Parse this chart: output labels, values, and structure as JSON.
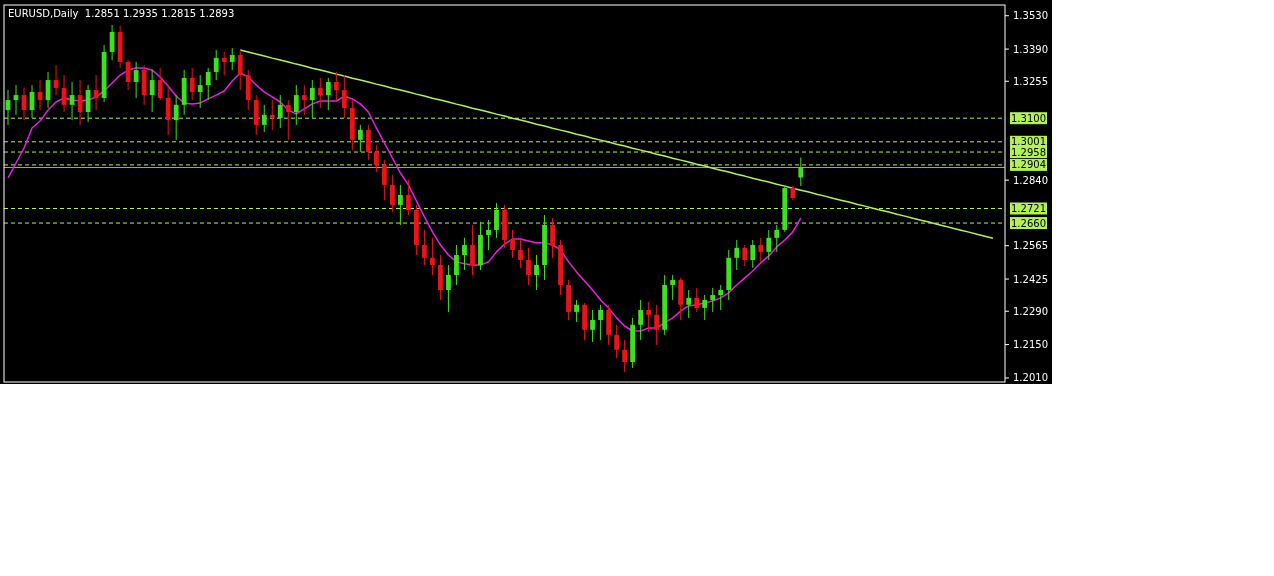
{
  "chart_data": {
    "type": "candlestick",
    "title": "EURUSD,Daily  1.2851 1.2935 1.2815 1.2893",
    "tick_labels": "y",
    "categories": [
      null,
      null,
      null,
      null,
      null,
      null,
      null,
      null,
      null,
      null,
      null,
      null,
      null,
      null,
      null,
      null,
      null,
      null,
      null,
      null,
      null,
      null,
      null,
      null,
      null,
      null,
      null,
      null,
      null,
      null,
      null,
      null,
      null,
      null,
      null,
      null,
      null,
      null,
      null,
      null,
      null,
      null,
      null,
      null,
      null,
      null,
      null,
      null,
      null,
      null,
      null,
      null,
      null,
      null,
      null,
      null,
      null,
      null,
      null,
      null,
      null,
      null,
      null,
      null,
      null,
      null,
      null,
      null,
      null,
      null,
      null,
      null,
      null,
      null,
      null,
      null,
      null,
      null,
      null,
      null,
      null,
      null,
      null,
      null,
      null,
      null,
      null,
      null,
      null,
      null,
      null,
      null,
      null,
      null,
      null,
      null,
      null,
      null,
      null,
      null,
      null,
      null,
      null,
      null,
      null,
      null,
      null,
      null,
      null,
      null,
      null,
      null,
      null,
      null,
      null,
      null,
      null,
      null,
      null,
      null,
      null,
      null,
      null,
      null,
      null
    ],
    "ylim": [
      1.1993,
      1.3575
    ],
    "yticks": [
      {
        "value": 1.353,
        "label": "1.3530"
      },
      {
        "value": 1.339,
        "label": "1.3390"
      },
      {
        "value": 1.3255,
        "label": "1.3255"
      },
      {
        "value": 1.284,
        "label": "1.2840"
      },
      {
        "value": 1.2565,
        "label": "1.2565"
      },
      {
        "value": 1.2425,
        "label": "1.2425"
      },
      {
        "value": 1.229,
        "label": "1.2290"
      },
      {
        "value": 1.215,
        "label": "1.2150"
      },
      {
        "value": 1.201,
        "label": "1.2010"
      }
    ],
    "series": [
      {
        "type": "line",
        "color": "#e81ee8",
        "values": [
          1.2849,
          1.2912,
          1.2975,
          1.3059,
          1.3088,
          1.3134,
          1.3168,
          1.3185,
          1.3176,
          1.3172,
          1.3176,
          1.3189,
          1.3214,
          1.3248,
          1.3281,
          1.3302,
          1.3311,
          1.3311,
          1.3302,
          1.3273,
          1.3235,
          1.3193,
          1.3164,
          1.316,
          1.3164,
          1.3181,
          1.3197,
          1.3214,
          1.3256,
          1.329,
          1.3273,
          1.3239,
          1.321,
          1.3189,
          1.3168,
          1.3134,
          1.3118,
          1.3139,
          1.316,
          1.3172,
          1.3172,
          1.3172,
          1.3193,
          1.3181,
          1.316,
          1.3126,
          1.3059,
          1.2996,
          1.2933,
          1.287,
          1.282,
          1.2753,
          1.2686,
          1.2623,
          1.2568,
          1.2526,
          1.2497,
          1.2489,
          1.2484,
          1.2484,
          1.2497,
          1.2539,
          1.2572,
          1.2593,
          1.2593,
          1.2585,
          1.2577,
          1.2577,
          1.2568,
          1.2547,
          1.2497,
          1.2455,
          1.2417,
          1.2379,
          1.2337,
          1.2304,
          1.2262,
          1.2228,
          1.2207,
          1.2207,
          1.222,
          1.222,
          1.2241,
          1.2262,
          1.2291,
          1.2312,
          1.2317,
          1.2325,
          1.2333,
          1.2346,
          1.2367,
          1.24,
          1.243,
          1.2459,
          1.2493,
          1.2522,
          1.256,
          1.2589,
          1.2623,
          1.2681,
          null,
          null,
          null,
          null,
          null,
          null,
          null,
          null,
          null,
          null,
          null,
          null,
          null,
          null,
          null,
          null,
          null,
          null,
          null,
          null,
          null,
          null,
          null,
          null,
          null
        ]
      },
      {
        "type": "line",
        "color": "#b4f05a",
        "values": [
          null,
          null,
          null,
          null,
          null,
          null,
          null,
          null,
          null,
          null,
          null,
          null,
          null,
          null,
          null,
          null,
          null,
          null,
          null,
          null,
          null,
          null,
          null,
          null,
          null,
          null,
          null,
          null,
          null,
          1.3386,
          1.3378,
          1.3369,
          1.3361,
          1.3352,
          1.3344,
          1.3336,
          1.3327,
          1.3319,
          1.331,
          1.3302,
          1.3294,
          1.3285,
          1.3277,
          1.3268,
          1.326,
          1.3252,
          1.3243,
          1.3235,
          1.3226,
          1.3218,
          1.321,
          1.3201,
          1.3193,
          1.3184,
          1.3176,
          1.3168,
          1.3159,
          1.3151,
          1.3142,
          1.3134,
          1.3126,
          1.3117,
          1.3109,
          1.31,
          1.3092,
          1.3084,
          1.3075,
          1.3067,
          1.3058,
          1.305,
          1.3042,
          1.3033,
          1.3025,
          1.3016,
          1.3008,
          1.3,
          1.2991,
          1.2983,
          1.2974,
          1.2966,
          1.2958,
          1.2949,
          1.2941,
          1.2932,
          1.2924,
          1.2916,
          1.2907,
          1.2899,
          1.289,
          1.2882,
          1.2874,
          1.2865,
          1.2857,
          1.2848,
          1.284,
          1.2832,
          1.2823,
          1.2815,
          1.2806,
          1.2798,
          1.279,
          1.2781,
          1.2773,
          1.2764,
          1.2756,
          1.2748,
          1.2739,
          1.2731,
          1.2722,
          1.2714,
          1.2706,
          1.2697,
          1.2689,
          1.268,
          1.2672,
          1.2664,
          1.2655,
          1.2647,
          1.2638,
          1.263,
          1.2622,
          1.2613,
          1.2605,
          1.2596,
          null
        ]
      },
      {
        "ohlc": [
          [
            1.3134,
            1.3218,
            1.3072,
            1.3176
          ],
          [
            1.3176,
            1.3239,
            1.3114,
            1.3197
          ],
          [
            1.3197,
            1.3227,
            1.3092,
            1.3134
          ],
          [
            1.3134,
            1.3239,
            1.3101,
            1.321
          ],
          [
            1.321,
            1.326,
            1.3134,
            1.3176
          ],
          [
            1.3176,
            1.3294,
            1.3143,
            1.326
          ],
          [
            1.326,
            1.3323,
            1.3197,
            1.3227
          ],
          [
            1.3227,
            1.3281,
            1.3126,
            1.3156
          ],
          [
            1.3156,
            1.3252,
            1.3092,
            1.3197
          ],
          [
            1.3197,
            1.326,
            1.3072,
            1.3126
          ],
          [
            1.3126,
            1.3239,
            1.3084,
            1.3218
          ],
          [
            1.3218,
            1.3281,
            1.3134,
            1.3185
          ],
          [
            1.3185,
            1.3407,
            1.3168,
            1.3378
          ],
          [
            1.3378,
            1.3491,
            1.3344,
            1.3462
          ],
          [
            1.3462,
            1.3487,
            1.3311,
            1.3336
          ],
          [
            1.3336,
            1.3344,
            1.3218,
            1.3252
          ],
          [
            1.3252,
            1.3336,
            1.3185,
            1.3302
          ],
          [
            1.3302,
            1.3323,
            1.3156,
            1.3197
          ],
          [
            1.3197,
            1.3302,
            1.3126,
            1.326
          ],
          [
            1.326,
            1.3311,
            1.3176,
            1.3185
          ],
          [
            1.3185,
            1.3239,
            1.303,
            1.3092
          ],
          [
            1.3092,
            1.3197,
            1.3009,
            1.3156
          ],
          [
            1.3156,
            1.3302,
            1.3114,
            1.3269
          ],
          [
            1.3269,
            1.3311,
            1.3176,
            1.321
          ],
          [
            1.321,
            1.3281,
            1.3143,
            1.3239
          ],
          [
            1.3239,
            1.3311,
            1.3176,
            1.3294
          ],
          [
            1.3294,
            1.3386,
            1.326,
            1.3353
          ],
          [
            1.3353,
            1.3378,
            1.3281,
            1.3336
          ],
          [
            1.3336,
            1.3395,
            1.3302,
            1.3365
          ],
          [
            1.3365,
            1.3386,
            1.3218,
            1.3281
          ],
          [
            1.3281,
            1.3302,
            1.3134,
            1.3176
          ],
          [
            1.3176,
            1.3197,
            1.303,
            1.3072
          ],
          [
            1.3072,
            1.3156,
            1.3042,
            1.3114
          ],
          [
            1.3114,
            1.3176,
            1.3051,
            1.3101
          ],
          [
            1.3101,
            1.3197,
            1.3059,
            1.3156
          ],
          [
            1.3156,
            1.3176,
            1.3009,
            1.3126
          ],
          [
            1.3126,
            1.3239,
            1.3072,
            1.3197
          ],
          [
            1.3197,
            1.3239,
            1.3114,
            1.3176
          ],
          [
            1.3176,
            1.326,
            1.3101,
            1.3227
          ],
          [
            1.3227,
            1.3269,
            1.3143,
            1.3197
          ],
          [
            1.3197,
            1.3269,
            1.3134,
            1.3252
          ],
          [
            1.3252,
            1.3294,
            1.3176,
            1.3218
          ],
          [
            1.3218,
            1.3281,
            1.3101,
            1.3143
          ],
          [
            1.3143,
            1.3176,
            1.2967,
            1.3009
          ],
          [
            1.3009,
            1.3072,
            1.2958,
            1.3051
          ],
          [
            1.3051,
            1.3072,
            1.2925,
            1.2958
          ],
          [
            1.2958,
            1.2988,
            1.2874,
            1.2904
          ],
          [
            1.2904,
            1.2925,
            1.2757,
            1.282
          ],
          [
            1.282,
            1.2862,
            1.2707,
            1.2736
          ],
          [
            1.2736,
            1.282,
            1.2652,
            1.2778
          ],
          [
            1.2778,
            1.2841,
            1.2694,
            1.2715
          ],
          [
            1.2715,
            1.2736,
            1.2526,
            1.2568
          ],
          [
            1.2568,
            1.2631,
            1.2484,
            1.2514
          ],
          [
            1.2514,
            1.2598,
            1.2442,
            1.2484
          ],
          [
            1.2484,
            1.2526,
            1.2337,
            1.2379
          ],
          [
            1.2379,
            1.2484,
            1.2287,
            1.2442
          ],
          [
            1.2442,
            1.2568,
            1.24,
            1.2526
          ],
          [
            1.2526,
            1.2598,
            1.2463,
            1.2568
          ],
          [
            1.2568,
            1.2652,
            1.2442,
            1.2484
          ],
          [
            1.2484,
            1.2665,
            1.2463,
            1.261
          ],
          [
            1.261,
            1.2673,
            1.2547,
            1.2631
          ],
          [
            1.2631,
            1.2744,
            1.2598,
            1.2715
          ],
          [
            1.2715,
            1.2736,
            1.2556,
            1.2589
          ],
          [
            1.2589,
            1.2631,
            1.2514,
            1.2547
          ],
          [
            1.2547,
            1.2589,
            1.2472,
            1.2505
          ],
          [
            1.2505,
            1.2556,
            1.24,
            1.2442
          ],
          [
            1.2442,
            1.2526,
            1.2379,
            1.2484
          ],
          [
            1.2484,
            1.2694,
            1.2421,
            1.2652
          ],
          [
            1.2652,
            1.2681,
            1.2514,
            1.2568
          ],
          [
            1.2568,
            1.2589,
            1.2358,
            1.24
          ],
          [
            1.24,
            1.2421,
            1.2253,
            1.2287
          ],
          [
            1.2287,
            1.2337,
            1.2245,
            1.2317
          ],
          [
            1.2317,
            1.2325,
            1.217,
            1.2212
          ],
          [
            1.2212,
            1.2295,
            1.2161,
            1.2253
          ],
          [
            1.2253,
            1.2317,
            1.217,
            1.2295
          ],
          [
            1.2295,
            1.2317,
            1.2149,
            1.2191
          ],
          [
            1.2191,
            1.2233,
            1.2094,
            1.2128
          ],
          [
            1.2128,
            1.217,
            1.2035,
            1.2077
          ],
          [
            1.2077,
            1.2262,
            1.2052,
            1.2233
          ],
          [
            1.2233,
            1.2337,
            1.217,
            1.2295
          ],
          [
            1.2295,
            1.2329,
            1.2203,
            1.2275
          ],
          [
            1.2275,
            1.2317,
            1.2149,
            1.2212
          ],
          [
            1.2212,
            1.2442,
            1.2191,
            1.24
          ],
          [
            1.24,
            1.2442,
            1.2337,
            1.2421
          ],
          [
            1.2421,
            1.243,
            1.2253,
            1.2317
          ],
          [
            1.2317,
            1.2379,
            1.2262,
            1.2346
          ],
          [
            1.2346,
            1.2388,
            1.2287,
            1.2304
          ],
          [
            1.2304,
            1.2358,
            1.2253,
            1.2337
          ],
          [
            1.2337,
            1.2388,
            1.2287,
            1.2358
          ],
          [
            1.2358,
            1.24,
            1.2295,
            1.2379
          ],
          [
            1.2379,
            1.2547,
            1.2337,
            1.2514
          ],
          [
            1.2514,
            1.2589,
            1.2463,
            1.2556
          ],
          [
            1.2556,
            1.2568,
            1.248,
            1.2505
          ],
          [
            1.2505,
            1.2589,
            1.2472,
            1.2568
          ],
          [
            1.2568,
            1.2598,
            1.2497,
            1.2539
          ],
          [
            1.2539,
            1.2631,
            1.2505,
            1.2598
          ],
          [
            1.2598,
            1.2652,
            1.2539,
            1.2631
          ],
          [
            1.2631,
            1.282,
            1.2623,
            1.2807
          ],
          [
            1.2807,
            1.2816,
            1.2757,
            1.2765
          ],
          [
            1.2851,
            1.2935,
            1.2815,
            1.2893
          ],
          null,
          null,
          null,
          null,
          null,
          null,
          null,
          null,
          null,
          null,
          null,
          null,
          null,
          null,
          null,
          null,
          null,
          null,
          null,
          null,
          null,
          null,
          null,
          null,
          null
        ],
        "colors": [
          "#3fe01f",
          "#3fe01f",
          "#e8141a",
          "#3fe01f",
          "#e8141a",
          "#3fe01f",
          "#e8141a",
          "#e8141a",
          "#3fe01f",
          "#e8141a",
          "#3fe01f",
          "#e8141a",
          "#3fe01f",
          "#3fe01f",
          "#e8141a",
          "#e8141a",
          "#3fe01f",
          "#e8141a",
          "#3fe01f",
          "#e8141a",
          "#e8141a",
          "#3fe01f",
          "#3fe01f",
          "#e8141a",
          "#3fe01f",
          "#3fe01f",
          "#3fe01f",
          "#e8141a",
          "#3fe01f",
          "#e8141a",
          "#e8141a",
          "#e8141a",
          "#3fe01f",
          "#e8141a",
          "#3fe01f",
          "#e8141a",
          "#3fe01f",
          "#e8141a",
          "#3fe01f",
          "#e8141a",
          "#3fe01f",
          "#e8141a",
          "#e8141a",
          "#e8141a",
          "#3fe01f",
          "#e8141a",
          "#e8141a",
          "#e8141a",
          "#e8141a",
          "#3fe01f",
          "#e8141a",
          "#e8141a",
          "#e8141a",
          "#e8141a",
          "#e8141a",
          "#3fe01f",
          "#3fe01f",
          "#3fe01f",
          "#e8141a",
          "#3fe01f",
          "#3fe01f",
          "#3fe01f",
          "#e8141a",
          "#e8141a",
          "#e8141a",
          "#e8141a",
          "#3fe01f",
          "#3fe01f",
          "#e8141a",
          "#e8141a",
          "#e8141a",
          "#3fe01f",
          "#e8141a",
          "#3fe01f",
          "#3fe01f",
          "#e8141a",
          "#e8141a",
          "#e8141a",
          "#3fe01f",
          "#3fe01f",
          "#e8141a",
          "#e8141a",
          "#3fe01f",
          "#3fe01f",
          "#e8141a",
          "#3fe01f",
          "#e8141a",
          "#3fe01f",
          "#3fe01f",
          "#3fe01f",
          "#3fe01f",
          "#3fe01f",
          "#e8141a",
          "#3fe01f",
          "#e8141a",
          "#3fe01f",
          "#3fe01f",
          "#3fe01f",
          "#e8141a",
          "#3fe01f",
          null,
          null,
          null,
          null,
          null,
          null,
          null,
          null,
          null,
          null,
          null,
          null,
          null,
          null,
          null,
          null,
          null,
          null,
          null,
          null,
          null,
          null,
          null,
          null,
          null
        ]
      }
    ],
    "ref_lines": [
      {
        "axis": "y",
        "value": 1.31,
        "label": "1.3100",
        "color": "#b4f05a",
        "line_style": "dashed"
      },
      {
        "axis": "y",
        "value": 1.3001,
        "label": "1.3001",
        "color": "#b4f05a",
        "line_style": "dashed"
      },
      {
        "axis": "y",
        "value": 1.2958,
        "label": "1.2958",
        "color": "#b4f05a",
        "line_style": "dashed"
      },
      {
        "axis": "y",
        "value": 1.2904,
        "label": "1.2904",
        "color": "#b4f05a",
        "line_style": "dashed"
      },
      {
        "axis": "y",
        "value": 1.2893,
        "color": "#a0a0a0",
        "line_style": "solid"
      },
      {
        "axis": "y",
        "value": 1.2721,
        "label": "1.2721",
        "color": "#b4f05a",
        "line_style": "dashed"
      },
      {
        "axis": "y",
        "value": 1.266,
        "label": "1.2660",
        "color": "#b4f05a",
        "line_style": "dashed"
      }
    ]
  }
}
